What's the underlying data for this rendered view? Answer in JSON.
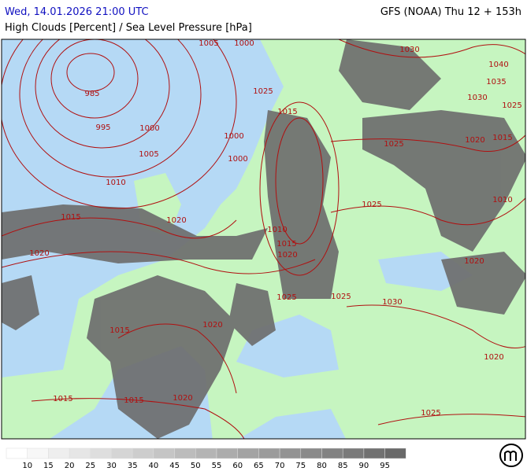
{
  "header": {
    "datetime": "Wed, 14.01.2026 21:00 UTC",
    "model": "GFS (NOAA) Thu 12 + 153h",
    "subtitle": "High Clouds [Percent] / Sea Level Pressure [hPa]"
  },
  "map": {
    "isobar_labels": [
      1000,
      1005,
      985,
      995,
      1000,
      1005,
      1010,
      1015,
      1020,
      1020,
      1025,
      1015,
      1000,
      1000,
      1010,
      1015,
      1020,
      1030,
      1040,
      1035,
      1030,
      1025,
      1025,
      1020,
      1015,
      1025,
      1010,
      1020,
      1030,
      1025,
      1025,
      1020,
      1015,
      1020,
      1015,
      1015,
      1020,
      1025
    ]
  },
  "legend": {
    "levels": [
      10,
      15,
      20,
      25,
      30,
      35,
      40,
      45,
      50,
      55,
      60,
      65,
      70,
      75,
      80,
      85,
      90,
      95
    ]
  }
}
